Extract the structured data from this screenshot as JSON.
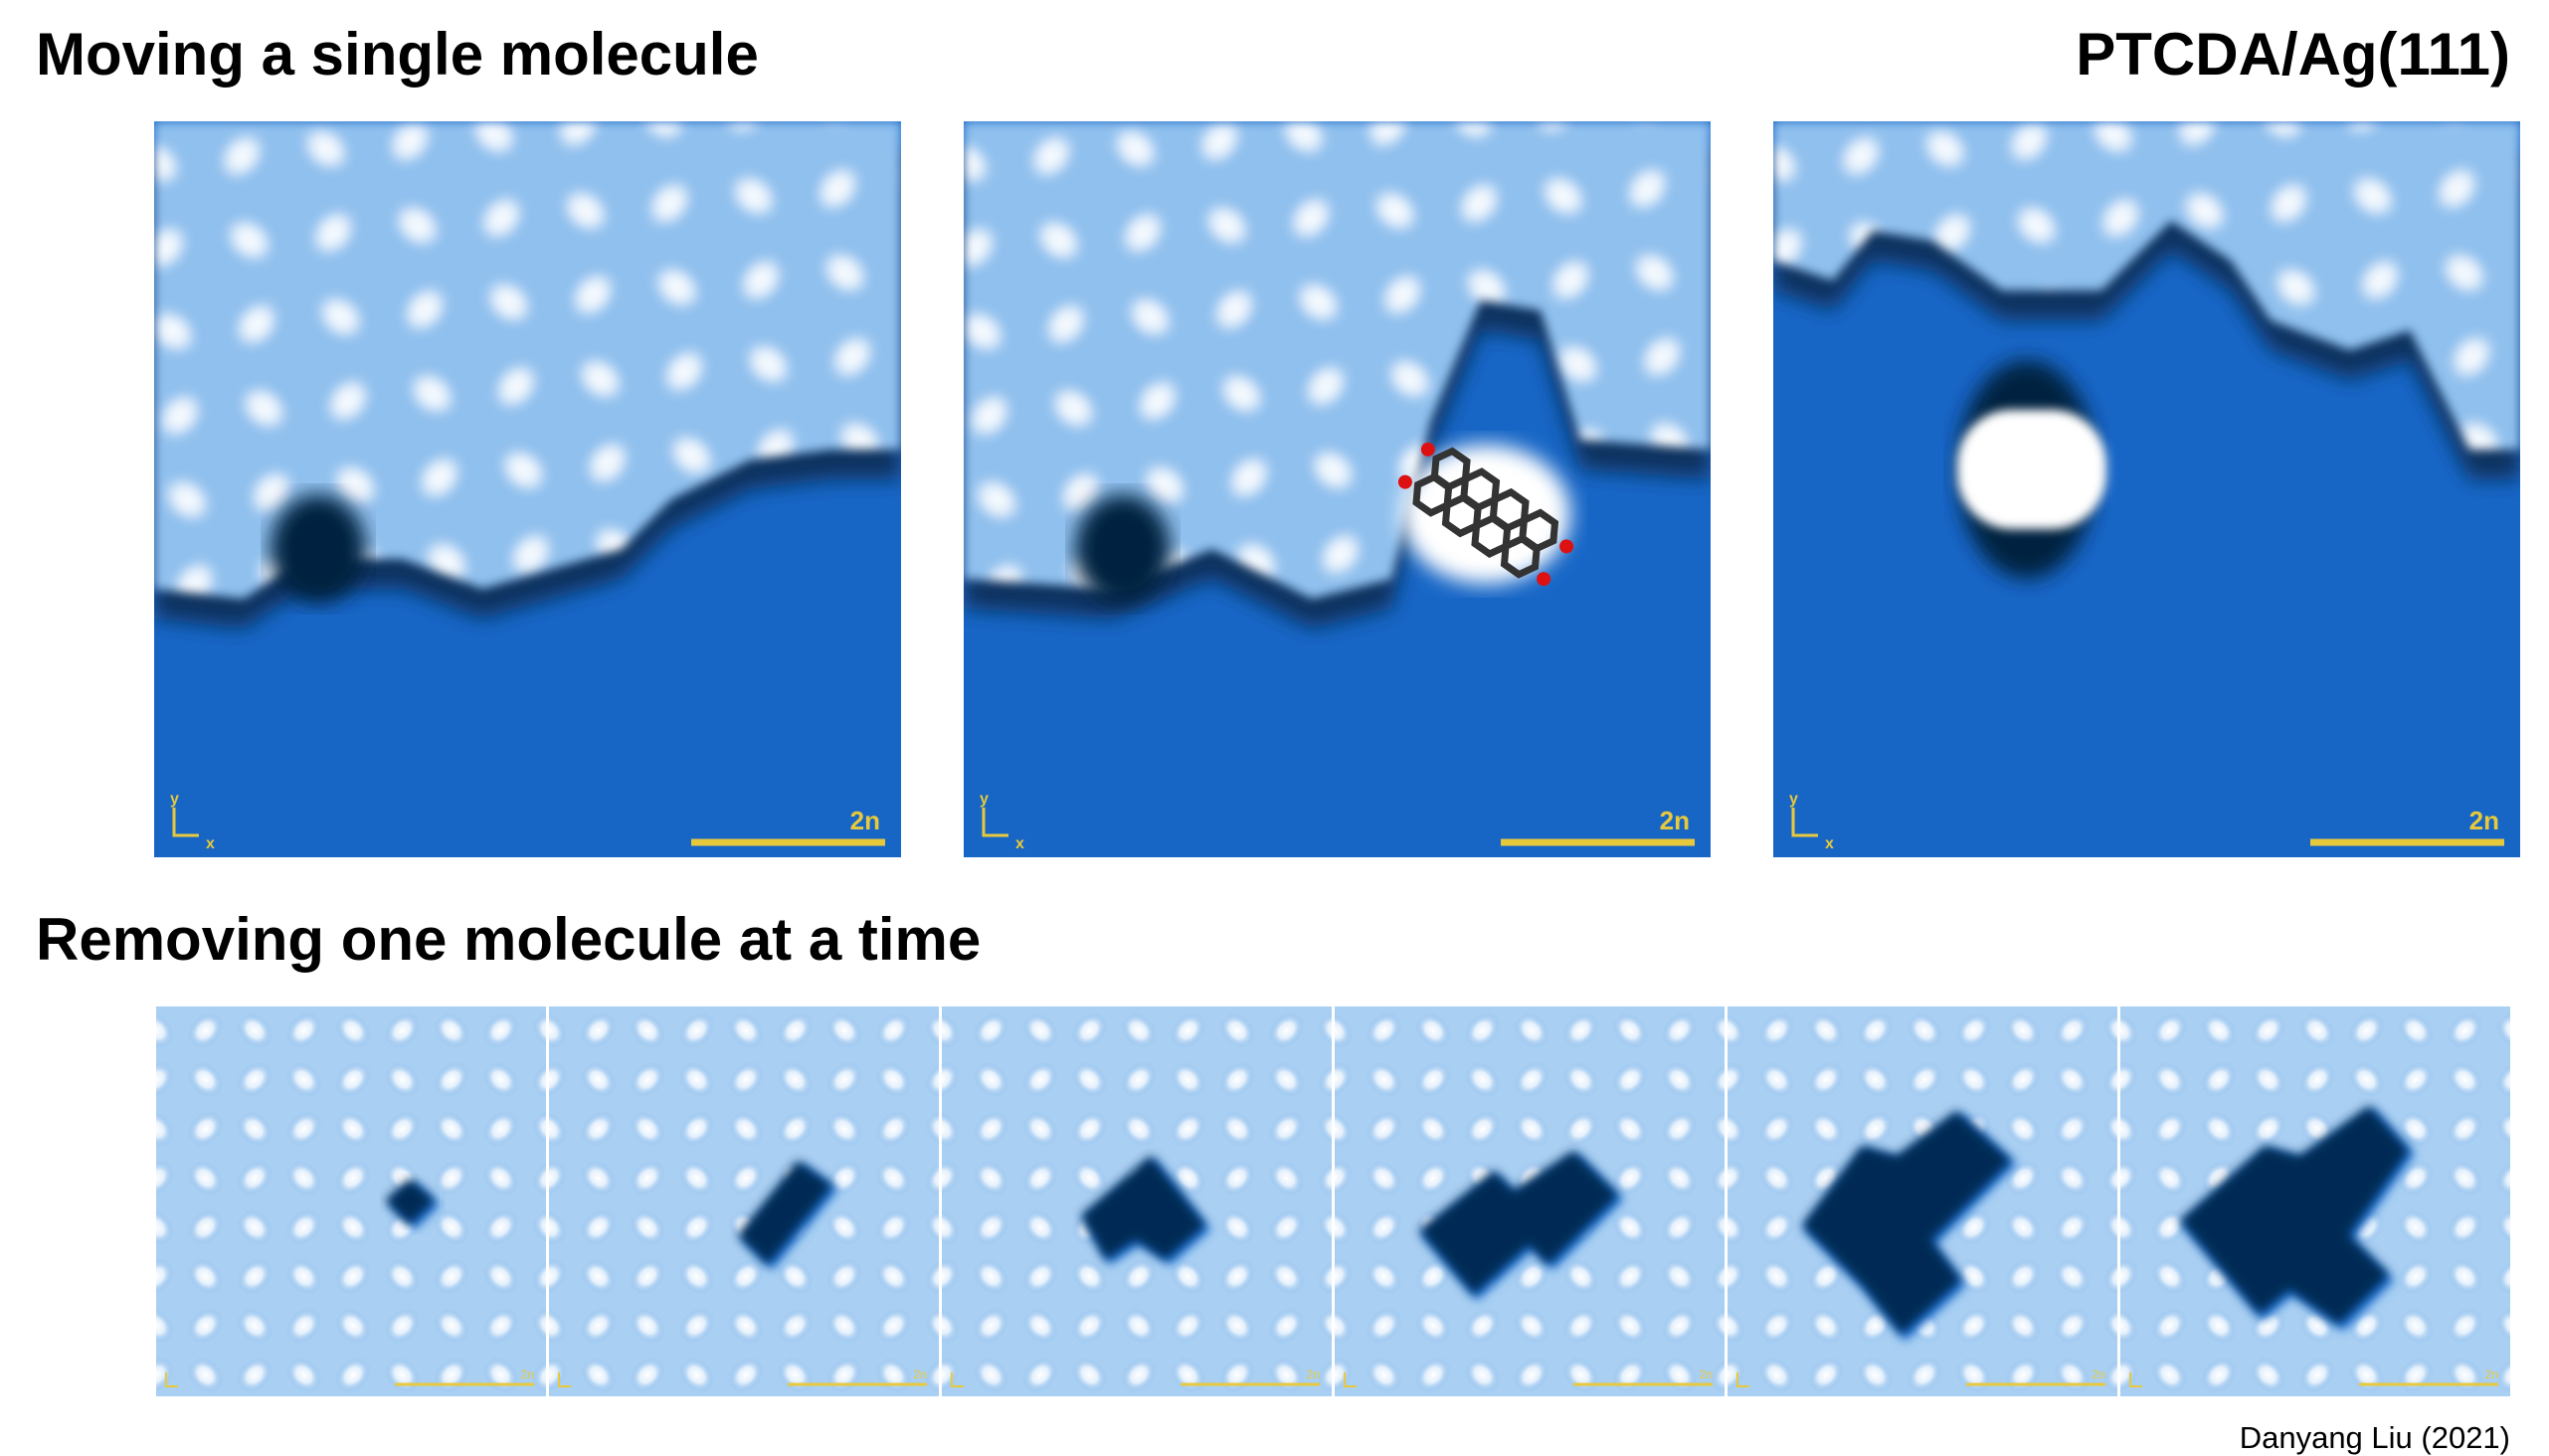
{
  "header": {
    "title": "Moving a single molecule",
    "label": "PTCDA/Ag(111)"
  },
  "top_panels": [
    {
      "axis_y": "y",
      "axis_x": "x",
      "scale_label": "2n"
    },
    {
      "axis_y": "y",
      "axis_x": "x",
      "scale_label": "2n"
    },
    {
      "axis_y": "y",
      "axis_x": "x",
      "scale_label": "2n"
    }
  ],
  "section": {
    "title": "Removing one molecule at a time"
  },
  "bottom_panels": [
    {
      "scale_label": "2n"
    },
    {
      "scale_label": "2n"
    },
    {
      "scale_label": "2n"
    },
    {
      "scale_label": "2n"
    },
    {
      "scale_label": "2n"
    },
    {
      "scale_label": "2n"
    }
  ],
  "footer": {
    "credit": "Danyang Liu (2021)"
  }
}
